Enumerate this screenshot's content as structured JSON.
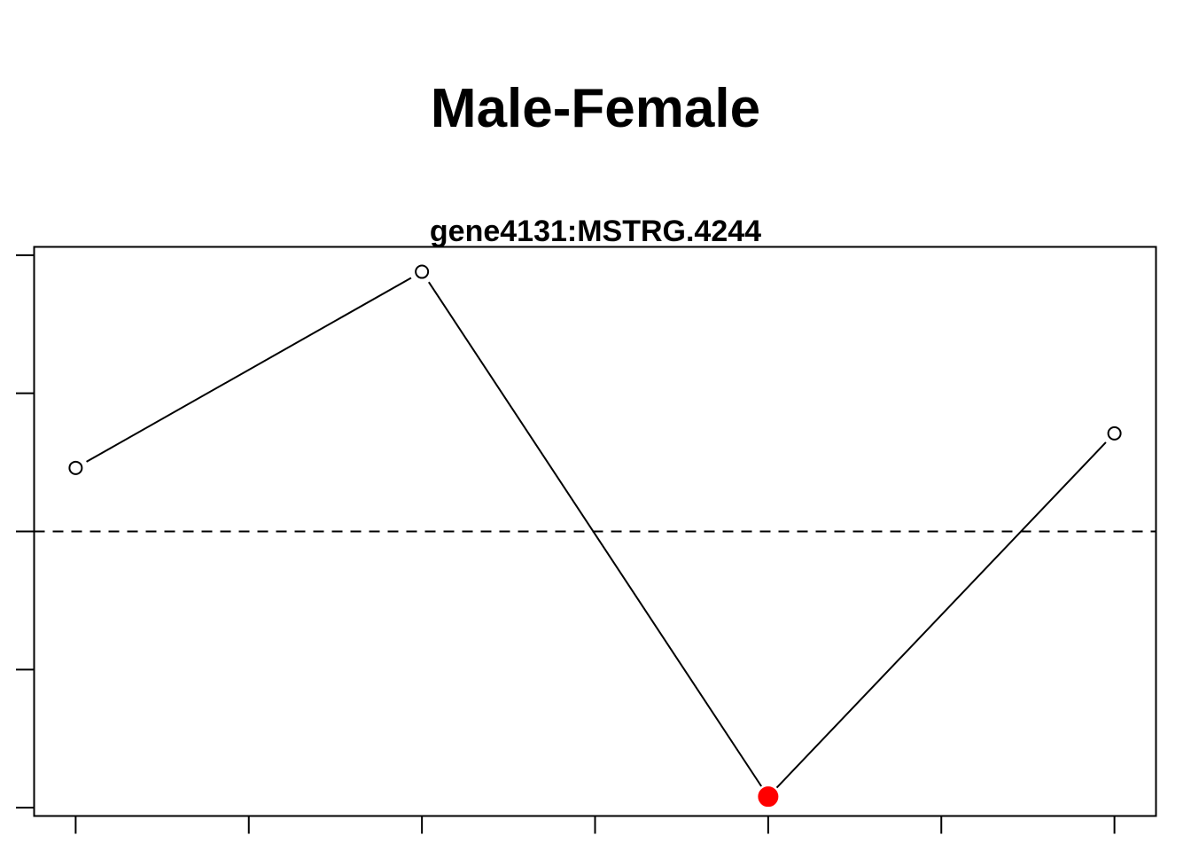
{
  "chart_data": {
    "type": "line",
    "title": "Male-Female",
    "subtitle": "gene4131:MSTRG.4244",
    "xlabel": "",
    "ylabel": "",
    "x": [
      1,
      3,
      5,
      7
    ],
    "xlim": [
      0.76,
      7.24
    ],
    "ylim": [
      -2.06,
      2.06
    ],
    "x_ticks": [
      1,
      2,
      3,
      4,
      5,
      6,
      7
    ],
    "y_ticks": [
      -2,
      -1,
      0,
      1,
      2
    ],
    "series": [
      {
        "values": [
          0.46,
          1.88,
          -1.92,
          0.71
        ],
        "point_style": [
          "open",
          "open",
          "filled",
          "open"
        ],
        "highlight_color": "#ff0000"
      }
    ],
    "reference_line": {
      "y": 0,
      "style": "dashed"
    },
    "grid": false,
    "legend": "none"
  }
}
